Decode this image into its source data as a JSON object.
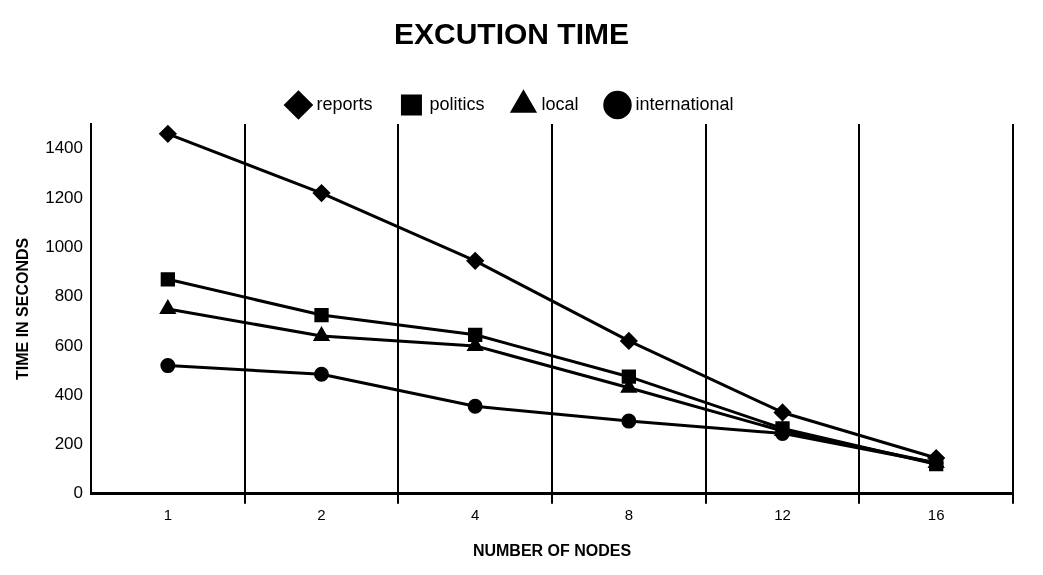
{
  "chart_data": {
    "type": "line",
    "title": "EXCUTION TIME",
    "xlabel": "NUMBER OF NODES",
    "ylabel": "TIME IN SECONDS",
    "categories": [
      "1",
      "2",
      "4",
      "8",
      "12",
      "16"
    ],
    "series": [
      {
        "name": "reports",
        "color": "#000000",
        "marker": "diamond",
        "values": [
          1460,
          1220,
          945,
          620,
          330,
          145
        ]
      },
      {
        "name": "politics",
        "color": "#000000",
        "marker": "square",
        "values": [
          870,
          725,
          645,
          475,
          265,
          120
        ]
      },
      {
        "name": "local",
        "color": "#000000",
        "marker": "triangle",
        "values": [
          750,
          640,
          600,
          430,
          255,
          125
        ]
      },
      {
        "name": "international",
        "color": "#000000",
        "marker": "circle",
        "values": [
          520,
          485,
          355,
          295,
          245,
          125
        ]
      }
    ],
    "ylim": [
      0,
      1500
    ],
    "yticks": [
      0,
      200,
      400,
      600,
      800,
      1000,
      1200,
      1400
    ],
    "grid": "x",
    "legend": "top",
    "line_style": "solid"
  }
}
